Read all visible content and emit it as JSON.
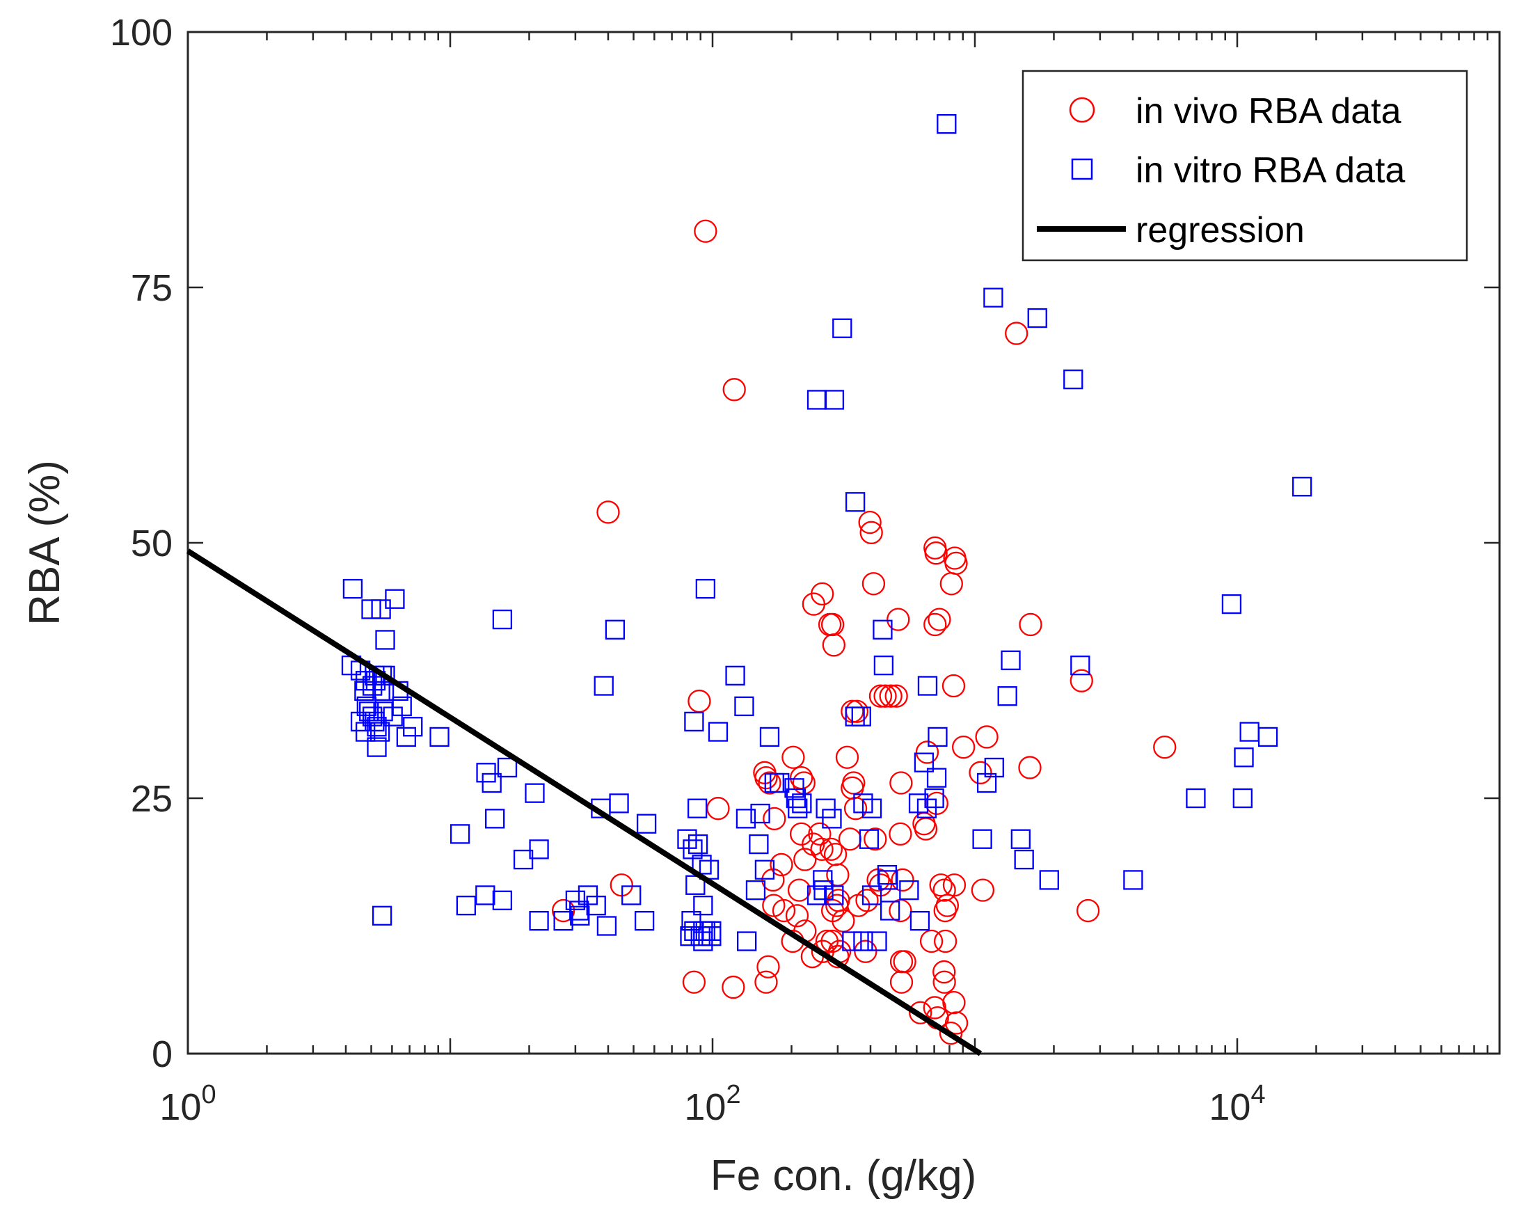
{
  "chart_data": {
    "type": "scatter",
    "title": "",
    "xlabel": "Fe con. (g/kg)",
    "ylabel": "RBA (%)",
    "x_scale": "log",
    "xlim": [
      1,
      100000
    ],
    "ylim": [
      0,
      100
    ],
    "x_ticks": [
      {
        "value": 1,
        "base": "10",
        "exp": "0"
      },
      {
        "value": 100,
        "base": "10",
        "exp": "2"
      },
      {
        "value": 10000,
        "base": "10",
        "exp": "4"
      }
    ],
    "y_ticks": [
      {
        "value": 0,
        "label": "0"
      },
      {
        "value": 25,
        "label": "25"
      },
      {
        "value": 50,
        "label": "50"
      },
      {
        "value": 75,
        "label": "75"
      },
      {
        "value": 100,
        "label": "100"
      }
    ],
    "grid": false,
    "legend_position": "top-right",
    "colors": {
      "in_vivo": "#ff0000",
      "in_vitro": "#0000ff",
      "regression": "#000000",
      "axis": "#262626"
    },
    "series": [
      {
        "name": "in vivo RBA data",
        "marker": "circle",
        "color": "#ff0000",
        "points": [
          [
            94,
            80.5
          ],
          [
            121,
            65
          ],
          [
            40,
            53
          ],
          [
            1440,
            70.5
          ],
          [
            398,
            52
          ],
          [
            403,
            51
          ],
          [
            411,
            46
          ],
          [
            510,
            42.5
          ],
          [
            705,
            42
          ],
          [
            732,
            42.5
          ],
          [
            705,
            49.5
          ],
          [
            711,
            49
          ],
          [
            838,
            48.5
          ],
          [
            848,
            48
          ],
          [
            814,
            46
          ],
          [
            243,
            44
          ],
          [
            262,
            45
          ],
          [
            287,
            42
          ],
          [
            280,
            42
          ],
          [
            290,
            40
          ],
          [
            355,
            33.5
          ],
          [
            341,
            33.5
          ],
          [
            455,
            35
          ],
          [
            478,
            35
          ],
          [
            502,
            35
          ],
          [
            437,
            35
          ],
          [
            830,
            36
          ],
          [
            1630,
            42
          ],
          [
            2550,
            36.5
          ],
          [
            5290,
            30
          ],
          [
            89,
            34.5
          ],
          [
            105,
            24
          ],
          [
            45,
            16.5
          ],
          [
            27,
            14
          ],
          [
            85,
            7
          ],
          [
            120,
            6.5
          ],
          [
            158,
            27.5
          ],
          [
            165,
            26.5
          ],
          [
            160,
            27
          ],
          [
            203,
            29
          ],
          [
            218,
            27
          ],
          [
            223,
            26.5
          ],
          [
            172,
            23
          ],
          [
            218,
            21.5
          ],
          [
            225,
            19
          ],
          [
            183,
            18.5
          ],
          [
            256,
            21.5
          ],
          [
            261,
            20
          ],
          [
            242,
            20.5
          ],
          [
            283,
            20
          ],
          [
            294,
            19.5
          ],
          [
            300,
            17.5
          ],
          [
            326,
            29
          ],
          [
            345,
            26.5
          ],
          [
            341,
            26
          ],
          [
            351,
            24
          ],
          [
            334,
            21
          ],
          [
            417,
            21
          ],
          [
            360,
            14.5
          ],
          [
            428,
            17
          ],
          [
            437,
            16.5
          ],
          [
            298,
            14.5
          ],
          [
            287,
            14
          ],
          [
            302,
            15
          ],
          [
            315,
            13
          ],
          [
            170,
            17
          ],
          [
            171,
            14.5
          ],
          [
            187,
            14
          ],
          [
            214,
            16
          ],
          [
            202,
            11
          ],
          [
            210,
            13.5
          ],
          [
            225,
            12
          ],
          [
            240,
            9.5
          ],
          [
            263,
            10
          ],
          [
            273,
            11
          ],
          [
            286,
            11
          ],
          [
            300,
            9.5
          ],
          [
            305,
            10
          ],
          [
            388,
            15
          ],
          [
            383,
            10
          ],
          [
            163,
            8.5
          ],
          [
            160,
            7
          ],
          [
            658,
            29.5
          ],
          [
            650,
            22
          ],
          [
            640,
            22.5
          ],
          [
            716,
            24.5
          ],
          [
            523,
            26.5
          ],
          [
            520,
            21.5
          ],
          [
            525,
            9
          ],
          [
            540,
            9
          ],
          [
            530,
            17
          ],
          [
            520,
            14
          ],
          [
            525,
            7
          ],
          [
            683,
            11
          ],
          [
            772,
            11
          ],
          [
            763,
            8
          ],
          [
            765,
            7
          ],
          [
            832,
            5
          ],
          [
            742,
            16.5
          ],
          [
            765,
            16
          ],
          [
            835,
            16.5
          ],
          [
            785,
            14.5
          ],
          [
            770,
            14
          ],
          [
            1072,
            16
          ],
          [
            1110,
            31
          ],
          [
            905,
            30
          ],
          [
            1050,
            27.5
          ],
          [
            1620,
            28
          ],
          [
            2700,
            14
          ],
          [
            720,
            3.5
          ],
          [
            620,
            4
          ],
          [
            703,
            4.5
          ],
          [
            810,
            2
          ],
          [
            851,
            3
          ]
        ]
      },
      {
        "name": "in vitro RBA data",
        "marker": "square",
        "color": "#0000ff",
        "points": [
          [
            780,
            91
          ],
          [
            1175,
            74
          ],
          [
            1730,
            72
          ],
          [
            312,
            71
          ],
          [
            2370,
            66
          ],
          [
            250,
            64
          ],
          [
            291,
            64
          ],
          [
            350,
            54
          ],
          [
            17670,
            55.5
          ],
          [
            4.25,
            45.5
          ],
          [
            5,
            43.5
          ],
          [
            5.45,
            43.5
          ],
          [
            6.15,
            44.5
          ],
          [
            5.65,
            40.5
          ],
          [
            5.15,
            37
          ],
          [
            5.2,
            36.5
          ],
          [
            5.05,
            36
          ],
          [
            5.5,
            37
          ],
          [
            5.65,
            37
          ],
          [
            4.75,
            36.5
          ],
          [
            5.6,
            35.5
          ],
          [
            6.35,
            35.5
          ],
          [
            4.2,
            38
          ],
          [
            4.55,
            37.5
          ],
          [
            4.7,
            35.5
          ],
          [
            4.8,
            34
          ],
          [
            4.9,
            33.5
          ],
          [
            5.05,
            33
          ],
          [
            5.15,
            32.5
          ],
          [
            5.25,
            32
          ],
          [
            5.4,
            31.5
          ],
          [
            5.55,
            33.5
          ],
          [
            6.05,
            33
          ],
          [
            6.55,
            34
          ],
          [
            7.2,
            32
          ],
          [
            6.8,
            31
          ],
          [
            4.75,
            31.5
          ],
          [
            4.55,
            32.5
          ],
          [
            5.25,
            30
          ],
          [
            9.1,
            31
          ],
          [
            15.8,
            42.5
          ],
          [
            42.5,
            41.5
          ],
          [
            38.5,
            36
          ],
          [
            94,
            45.5
          ],
          [
            122,
            37
          ],
          [
            132,
            34
          ],
          [
            105,
            31.5
          ],
          [
            85,
            32.5
          ],
          [
            165,
            31
          ],
          [
            152,
            23.5
          ],
          [
            13.7,
            27.5
          ],
          [
            14.4,
            26.5
          ],
          [
            16.5,
            28
          ],
          [
            21,
            25.5
          ],
          [
            21.8,
            20
          ],
          [
            19,
            19
          ],
          [
            14.8,
            23
          ],
          [
            10.9,
            21.5
          ],
          [
            13.6,
            15.5
          ],
          [
            11.5,
            14.5
          ],
          [
            15.8,
            15
          ],
          [
            21.8,
            13
          ],
          [
            27,
            13
          ],
          [
            30,
            15
          ],
          [
            31,
            14
          ],
          [
            33.5,
            15.5
          ],
          [
            31.2,
            13.5
          ],
          [
            37.5,
            24
          ],
          [
            44,
            24.5
          ],
          [
            56,
            22.5
          ],
          [
            39.5,
            12.5
          ],
          [
            49,
            15.5
          ],
          [
            55,
            13
          ],
          [
            36,
            14.5
          ],
          [
            5.5,
            13.5
          ],
          [
            80,
            21
          ],
          [
            84,
            20
          ],
          [
            87.5,
            24
          ],
          [
            88,
            20.5
          ],
          [
            86,
            16.5
          ],
          [
            91,
            18.5
          ],
          [
            97,
            18
          ],
          [
            92,
            14.5
          ],
          [
            83,
            13
          ],
          [
            85,
            12
          ],
          [
            82,
            11.5
          ],
          [
            90,
            11.5
          ],
          [
            92,
            11
          ],
          [
            94,
            12
          ],
          [
            99,
            11.5
          ],
          [
            99,
            12
          ],
          [
            92,
            12
          ],
          [
            134,
            23
          ],
          [
            135,
            11
          ],
          [
            150,
            20.5
          ],
          [
            146,
            16
          ],
          [
            158,
            18
          ],
          [
            172,
            26.5
          ],
          [
            180,
            26.5
          ],
          [
            205,
            26
          ],
          [
            208,
            25
          ],
          [
            211,
            24
          ],
          [
            219,
            24.5
          ],
          [
            250,
            15.5
          ],
          [
            263,
            17
          ],
          [
            270,
            24
          ],
          [
            265,
            16
          ],
          [
            285,
            23
          ],
          [
            290,
            15.5
          ],
          [
            349,
            33
          ],
          [
            369,
            33
          ],
          [
            375,
            24.5
          ],
          [
            395,
            21
          ],
          [
            405,
            24
          ],
          [
            405,
            15.5
          ],
          [
            463,
            17.5
          ],
          [
            340,
            11
          ],
          [
            375,
            11
          ],
          [
            475,
            14
          ],
          [
            467,
            17
          ],
          [
            424,
            11
          ],
          [
            445,
            41.5
          ],
          [
            449,
            38
          ],
          [
            660,
            36
          ],
          [
            721,
            31
          ],
          [
            640,
            28.5
          ],
          [
            715,
            27
          ],
          [
            656,
            24
          ],
          [
            610,
            24.5
          ],
          [
            617,
            13
          ],
          [
            561,
            16
          ],
          [
            700,
            25
          ],
          [
            1330,
            35
          ],
          [
            1370,
            38.5
          ],
          [
            1495,
            21
          ],
          [
            1540,
            19
          ],
          [
            1920,
            17
          ],
          [
            1067,
            21
          ],
          [
            2520,
            38
          ],
          [
            4010,
            17
          ],
          [
            9520,
            44
          ],
          [
            6950,
            25
          ],
          [
            10490,
            25
          ],
          [
            11140,
            31.5
          ],
          [
            13090,
            31
          ],
          [
            10600,
            29
          ],
          [
            1185,
            28
          ],
          [
            1110,
            26.5
          ]
        ]
      },
      {
        "name": "regression",
        "marker": "line",
        "color": "#000000",
        "points": [
          [
            1,
            49.2
          ],
          [
            1050,
            0
          ]
        ]
      }
    ]
  }
}
